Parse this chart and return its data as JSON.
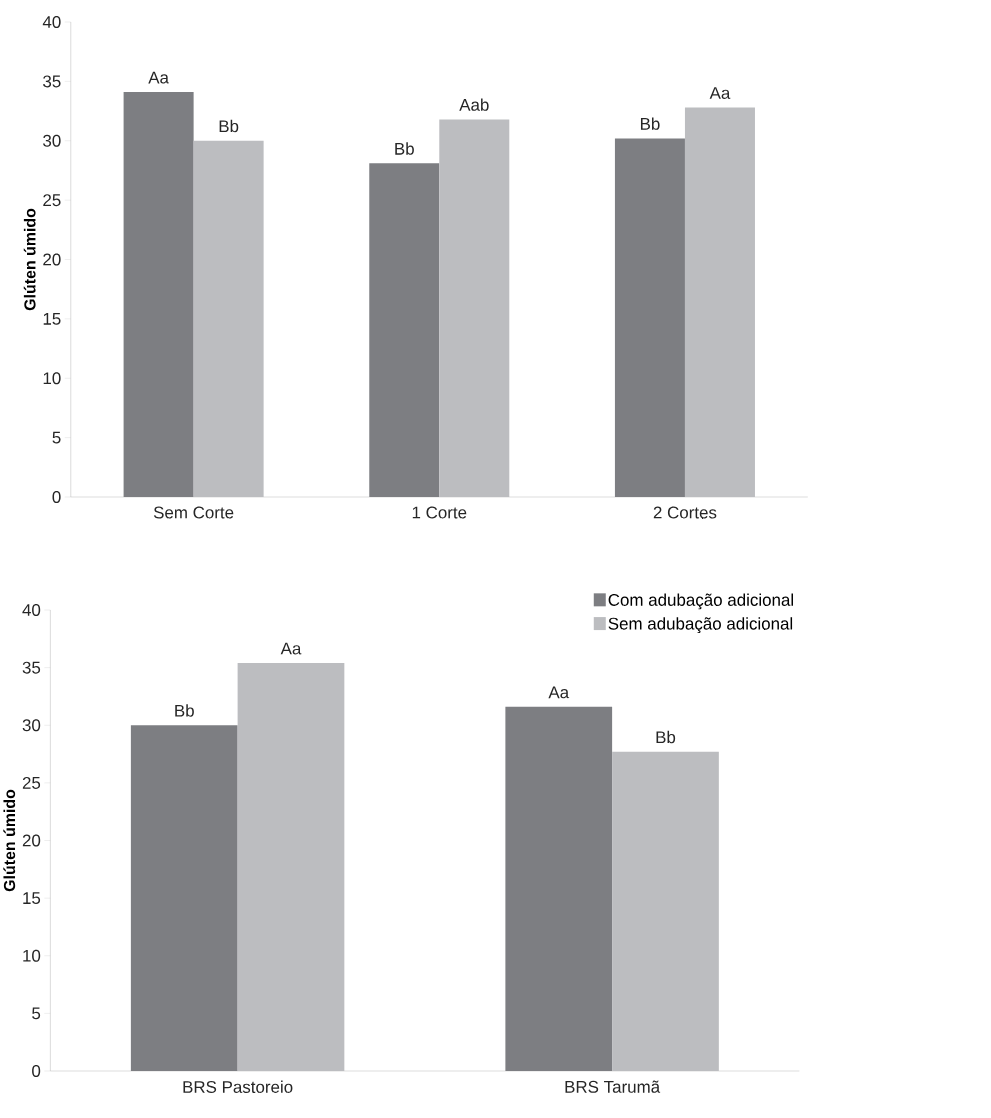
{
  "chart_data": [
    {
      "type": "bar",
      "ylabel": "Glúten úmido",
      "categories": [
        "Sem Corte",
        "1 Corte",
        "2 Cortes"
      ],
      "ylim": [
        0,
        40
      ],
      "yticks": [
        0,
        5,
        10,
        15,
        20,
        25,
        30,
        35,
        40
      ],
      "legend": false,
      "series": [
        {
          "color": "#7d7e82",
          "values": [
            34.1,
            28.1,
            30.2
          ],
          "value_labels": [
            "Aa",
            "Bb",
            "Bb"
          ]
        },
        {
          "color": "#bcbdc0",
          "values": [
            30.0,
            31.8,
            32.8
          ],
          "value_labels": [
            "Bb",
            "Aab",
            "Aa"
          ]
        }
      ]
    },
    {
      "type": "bar",
      "ylabel": "Glúten úmido",
      "categories": [
        "BRS Pastoreio",
        "BRS Tarumã"
      ],
      "ylim": [
        0,
        40
      ],
      "yticks": [
        0,
        5,
        10,
        15,
        20,
        25,
        30,
        35,
        40
      ],
      "legend": "top right",
      "series": [
        {
          "name": "Com adubação adicional",
          "color": "#7d7e82",
          "values": [
            30.0,
            31.6
          ],
          "value_labels": [
            "Bb",
            "Aa"
          ]
        },
        {
          "name": "Sem adubação adicional",
          "color": "#bcbdc0",
          "values": [
            35.4,
            27.7
          ],
          "value_labels": [
            "Aa",
            "Bb"
          ]
        }
      ]
    }
  ]
}
